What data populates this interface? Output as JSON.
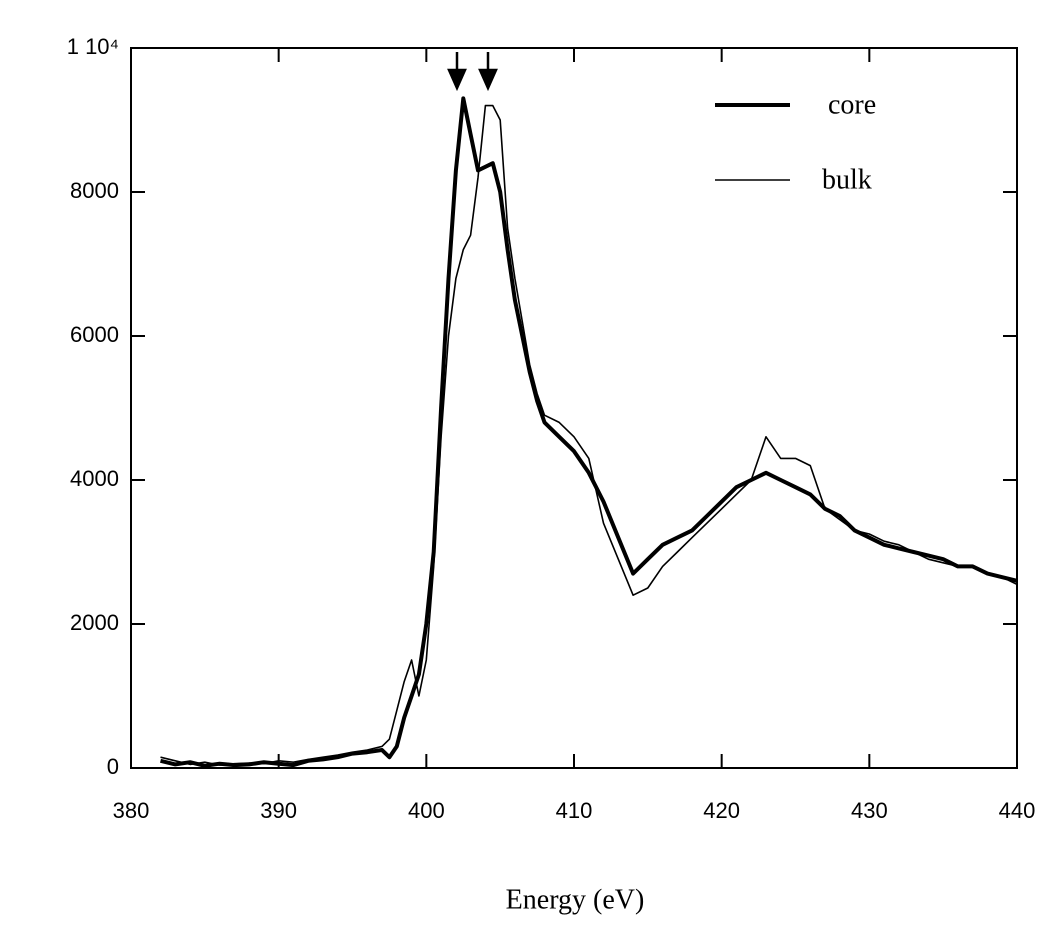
{
  "chart_data": {
    "type": "line",
    "xlabel": "Energy (eV)",
    "x": [
      382,
      383,
      384,
      385,
      386,
      387,
      388,
      389,
      390,
      391,
      392,
      393,
      394,
      395,
      396,
      397,
      397.5,
      398,
      398.5,
      399,
      399.5,
      400,
      400.5,
      401,
      401.5,
      402,
      402.5,
      403,
      403.5,
      404,
      404.5,
      405,
      405.5,
      406,
      406.5,
      407,
      407.5,
      408,
      409,
      410,
      411,
      412,
      413,
      414,
      415,
      416,
      417,
      418,
      419,
      420,
      421,
      422,
      423,
      424,
      425,
      426,
      427,
      428,
      429,
      430,
      431,
      432,
      433,
      434,
      435,
      436,
      437,
      438,
      439,
      440
    ],
    "series": [
      {
        "name": "core",
        "color": "#000000",
        "width": 4,
        "values": [
          100,
          50,
          80,
          30,
          60,
          40,
          50,
          80,
          60,
          40,
          100,
          120,
          150,
          200,
          220,
          250,
          150,
          300,
          700,
          1000,
          1300,
          2000,
          3000,
          5000,
          6800,
          8300,
          9300,
          8800,
          8300,
          8350,
          8400,
          8000,
          7200,
          6500,
          6000,
          5500,
          5100,
          4800,
          4600,
          4400,
          4100,
          3700,
          3200,
          2700,
          2900,
          3100,
          3200,
          3300,
          3500,
          3700,
          3900,
          4000,
          4100,
          4000,
          3900,
          3800,
          3600,
          3500,
          3300,
          3200,
          3100,
          3050,
          3000,
          2950,
          2900,
          2800,
          2800,
          2700,
          2650,
          2600
        ]
      },
      {
        "name": "bulk",
        "color": "#000000",
        "width": 1.6,
        "values": [
          150,
          100,
          50,
          80,
          40,
          60,
          70,
          60,
          100,
          80,
          120,
          150,
          180,
          220,
          250,
          300,
          400,
          800,
          1200,
          1500,
          1000,
          1500,
          2800,
          4600,
          6000,
          6800,
          7200,
          7400,
          8200,
          9200,
          9200,
          9000,
          7500,
          6800,
          6200,
          5600,
          5200,
          4900,
          4800,
          4600,
          4300,
          3400,
          2900,
          2400,
          2500,
          2800,
          3000,
          3200,
          3400,
          3600,
          3800,
          4000,
          4600,
          4300,
          4300,
          4200,
          3600,
          3450,
          3300,
          3250,
          3150,
          3100,
          3000,
          2900,
          2850,
          2800,
          2800,
          2700,
          2650,
          2550
        ]
      }
    ],
    "xlim": [
      380,
      440
    ],
    "xticks": [
      380,
      390,
      400,
      410,
      420,
      430,
      440
    ],
    "ylim": [
      0,
      10000
    ],
    "yticks": [
      0,
      2000,
      4000,
      6000,
      8000,
      {
        "value": 10000,
        "label": "1 10⁴"
      }
    ],
    "grid": false
  }
}
